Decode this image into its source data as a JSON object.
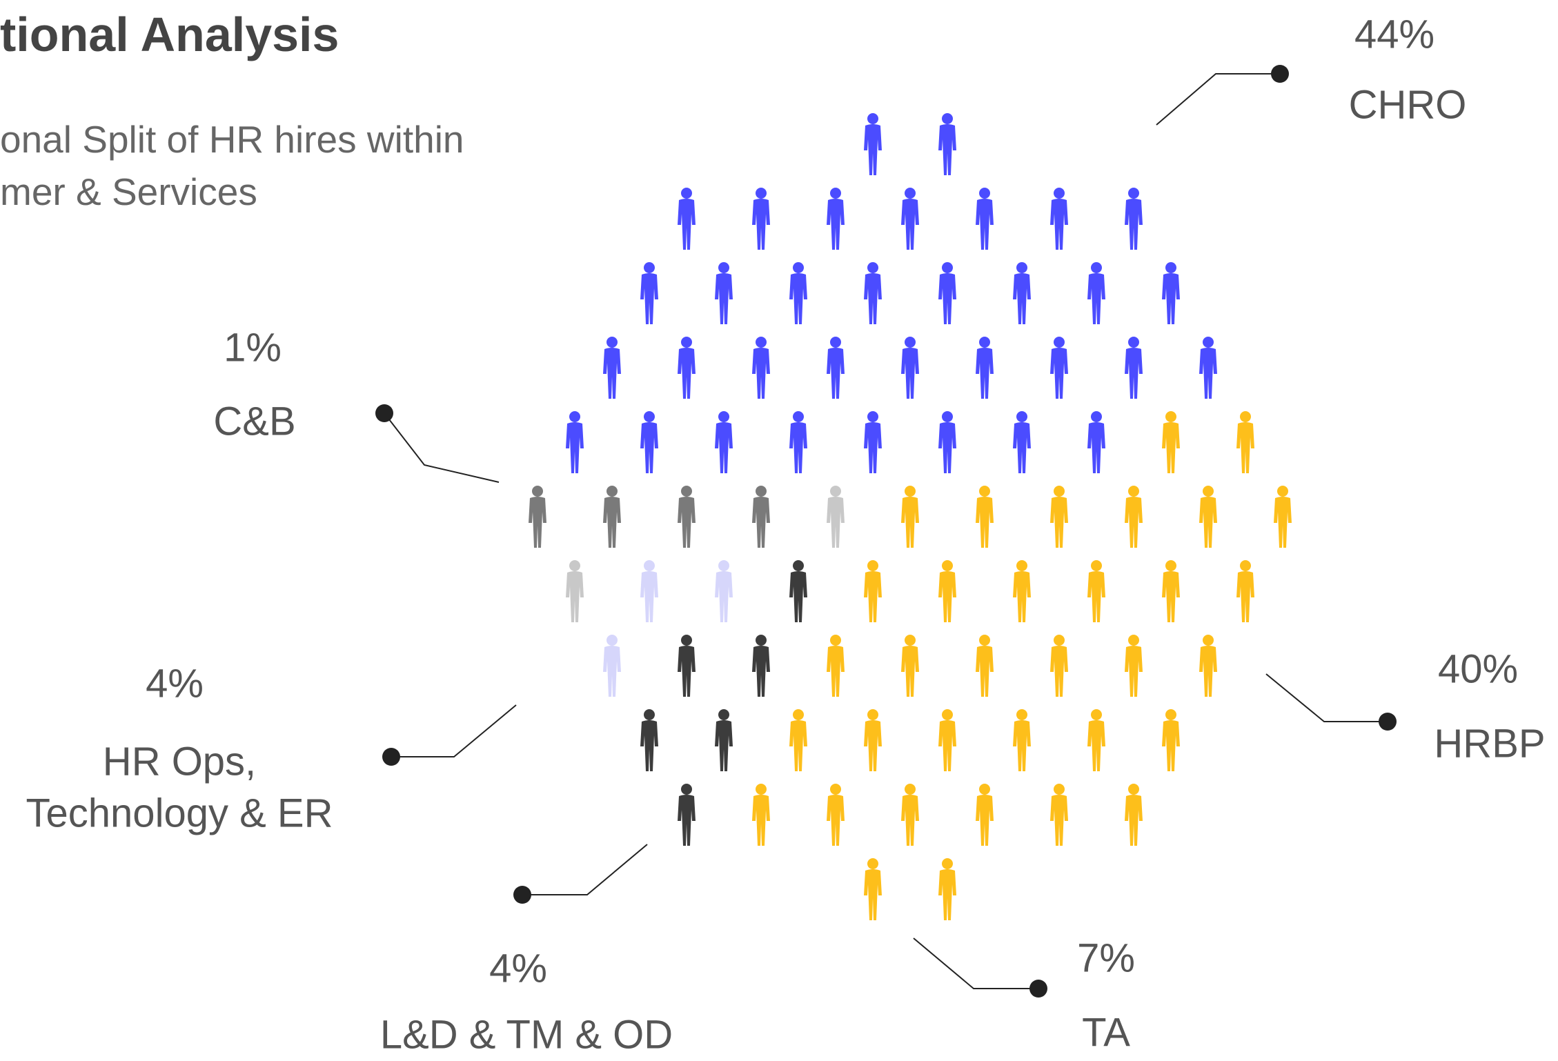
{
  "chart_data": {
    "type": "pictogram",
    "title": "tional Analysis",
    "subtitle": "onal Split of HR hires within\nmer & Services",
    "categories": [
      "C&B",
      "CHRO",
      "HRBP",
      "TA",
      "L&D & TM & OD",
      "HR Ops,\nTechnology & ER"
    ],
    "values": [
      1,
      44,
      40,
      7,
      4,
      4
    ],
    "value_labels": [
      "1%",
      "44%",
      "40%",
      "7%",
      "4%",
      "4%"
    ],
    "colors": [
      "#7a7a7a",
      "#4b4cff",
      "#fdbf1b",
      "#3c3c3c",
      "#d6d6fb",
      "#c8c8c8"
    ]
  }
}
